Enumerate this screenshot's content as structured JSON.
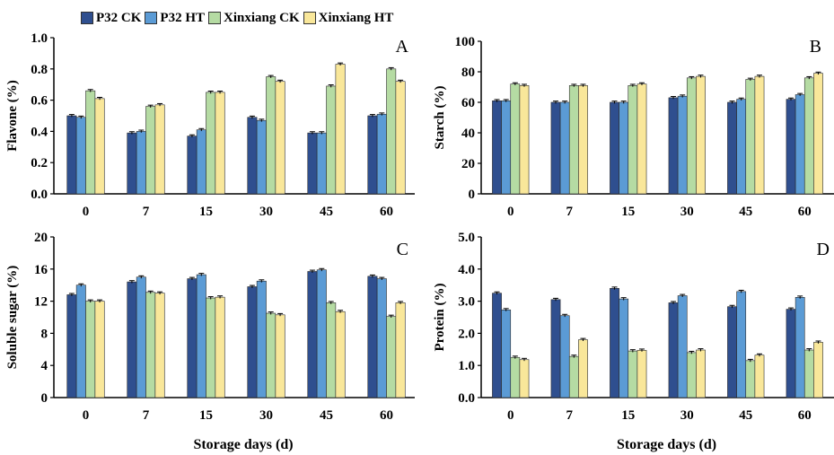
{
  "legend": {
    "items": [
      {
        "label": "P32 CK",
        "color": "#2f4f8f"
      },
      {
        "label": "P32 HT",
        "color": "#5b9bd5"
      },
      {
        "label": "Xinxiang CK",
        "color": "#b5dba3"
      },
      {
        "label": "Xinxiang HT",
        "color": "#f9e79a"
      }
    ]
  },
  "xlabel": "Storage days (d)",
  "chart_data": [
    {
      "type": "bar",
      "panel": "A",
      "ylabel": "Flavone (%)",
      "categories": [
        "0",
        "7",
        "15",
        "30",
        "45",
        "60"
      ],
      "ylim": [
        0,
        1.0
      ],
      "yticks": [
        "0.0",
        "0.2",
        "0.4",
        "0.6",
        "0.8",
        "1.0"
      ],
      "series": [
        {
          "name": "P32 CK",
          "values": [
            0.5,
            0.39,
            0.37,
            0.49,
            0.39,
            0.5
          ]
        },
        {
          "name": "P32 HT",
          "values": [
            0.49,
            0.4,
            0.41,
            0.47,
            0.39,
            0.51
          ]
        },
        {
          "name": "Xinxiang CK",
          "values": [
            0.66,
            0.56,
            0.65,
            0.75,
            0.69,
            0.8
          ]
        },
        {
          "name": "Xinxiang HT",
          "values": [
            0.61,
            0.57,
            0.65,
            0.72,
            0.83,
            0.72
          ]
        }
      ]
    },
    {
      "type": "bar",
      "panel": "B",
      "ylabel": "Starch (%)",
      "categories": [
        "0",
        "7",
        "15",
        "30",
        "45",
        "60"
      ],
      "ylim": [
        0,
        100
      ],
      "yticks": [
        "0",
        "20",
        "40",
        "60",
        "80",
        "100"
      ],
      "series": [
        {
          "name": "P32 CK",
          "values": [
            61,
            60,
            60,
            63,
            60,
            62
          ]
        },
        {
          "name": "P32 HT",
          "values": [
            61,
            60,
            60,
            64,
            62,
            65
          ]
        },
        {
          "name": "Xinxiang CK",
          "values": [
            72,
            71,
            71,
            76,
            75,
            76
          ]
        },
        {
          "name": "Xinxiang HT",
          "values": [
            71,
            71,
            72,
            77,
            77,
            79
          ]
        }
      ]
    },
    {
      "type": "bar",
      "panel": "C",
      "ylabel": "Soluble sugar (%)",
      "categories": [
        "0",
        "7",
        "15",
        "30",
        "45",
        "60"
      ],
      "ylim": [
        0,
        20
      ],
      "yticks": [
        "0",
        "4",
        "8",
        "12",
        "16",
        "20"
      ],
      "series": [
        {
          "name": "P32 CK",
          "values": [
            12.8,
            14.4,
            14.8,
            13.8,
            15.7,
            15.1
          ]
        },
        {
          "name": "P32 HT",
          "values": [
            14.0,
            15.0,
            15.3,
            14.5,
            15.9,
            14.8
          ]
        },
        {
          "name": "Xinxiang CK",
          "values": [
            12.0,
            13.1,
            12.4,
            10.5,
            11.8,
            10.1
          ]
        },
        {
          "name": "Xinxiang HT",
          "values": [
            12.0,
            13.0,
            12.5,
            10.3,
            10.7,
            11.8
          ]
        }
      ]
    },
    {
      "type": "bar",
      "panel": "D",
      "ylabel": "Protein (%)",
      "categories": [
        "0",
        "7",
        "15",
        "30",
        "45",
        "60"
      ],
      "ylim": [
        0,
        5.0
      ],
      "yticks": [
        "0.0",
        "1.0",
        "2.0",
        "3.0",
        "4.0",
        "5.0"
      ],
      "series": [
        {
          "name": "P32 CK",
          "values": [
            3.25,
            3.05,
            3.4,
            2.95,
            2.83,
            2.75
          ]
        },
        {
          "name": "P32 HT",
          "values": [
            2.73,
            2.55,
            3.07,
            3.17,
            3.3,
            3.12
          ]
        },
        {
          "name": "Xinxiang CK",
          "values": [
            1.25,
            1.28,
            1.45,
            1.4,
            1.15,
            1.48
          ]
        },
        {
          "name": "Xinxiang HT",
          "values": [
            1.18,
            1.8,
            1.47,
            1.48,
            1.32,
            1.72
          ]
        }
      ]
    }
  ]
}
